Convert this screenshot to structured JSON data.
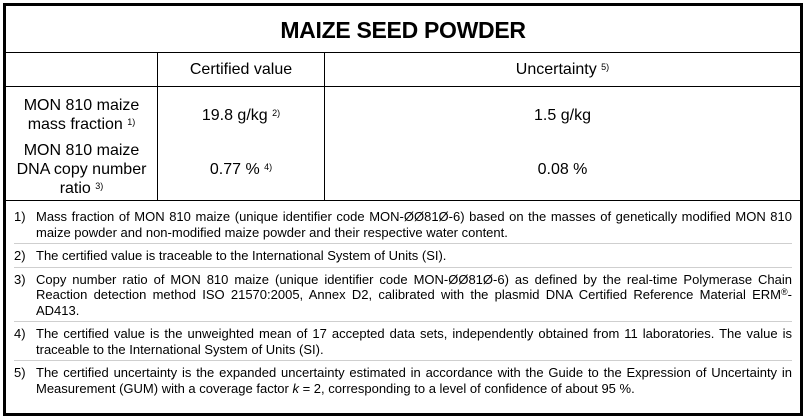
{
  "title": "MAIZE SEED POWDER",
  "header": {
    "col1": "",
    "col2": "Certified value",
    "col3": "Uncertainty",
    "col3_sup": "5)"
  },
  "rows": [
    {
      "label_line1": "MON 810 maize",
      "label_line2": "mass fraction",
      "label_sup": "1)",
      "value": "19.8 g/kg",
      "value_sup": "2)",
      "uncertainty": "1.5 g/kg"
    },
    {
      "label_line1": "MON 810 maize",
      "label_line2": "DNA copy number ratio",
      "label_sup": "3)",
      "value": "0.77 %",
      "value_sup": "4)",
      "uncertainty": "0.08 %"
    }
  ],
  "notes": [
    {
      "num": "1)",
      "text": "Mass fraction of MON 810 maize (unique identifier code MON-ØØ81Ø-6) based on the masses of genetically modified MON 810 maize powder and non-modified maize powder and their respective water content."
    },
    {
      "num": "2)",
      "text": "The certified value is traceable to the International System of Units (SI)."
    },
    {
      "num": "3)",
      "text_a": "Copy number ratio of MON 810 maize (unique identifier code MON-ØØ81Ø-6) as defined by the real-time Polymerase Chain Reaction detection method ISO 21570:2005, Annex D2, calibrated with the plasmid DNA Certified Reference Material ERM",
      "reg": "®",
      "text_b": "-AD413."
    },
    {
      "num": "4)",
      "text": "The certified value is the unweighted mean of 17 accepted data sets, independently obtained from 11 laboratories. The value is traceable to the International System of Units (SI)."
    },
    {
      "num": "5)",
      "text_a": "The certified uncertainty is the expanded uncertainty estimated in accordance with the Guide to the Expression of Uncertainty in Measurement (GUM) with a coverage factor ",
      "k": "k",
      "text_b": " = 2, corresponding to a level of confidence of about 95 %."
    }
  ]
}
